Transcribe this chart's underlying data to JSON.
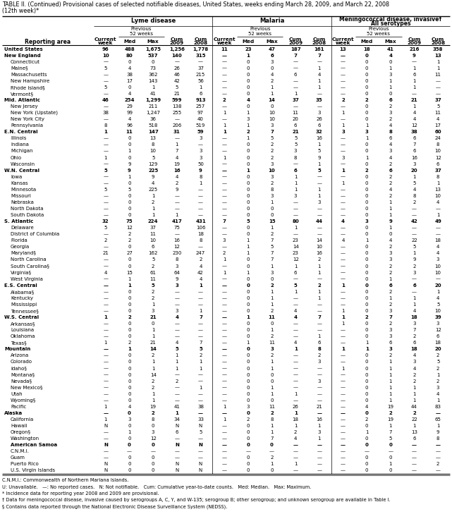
{
  "title_line1": "TABLE II. (Continued) Provisional cases of selected notifiable diseases, United States, weeks ending March 28, 2009, and March 22, 2008",
  "title_line2": "(12th week)*",
  "footnotes": [
    "C.N.M.I.: Commonwealth of Northern Mariana Islands.",
    "U: Unavailable.   —: No reported cases.   N: Not notifiable.   Cum: Cumulative year-to-date counts.   Med: Median.   Max: Maximum.",
    "* Incidence data for reporting year 2008 and 2009 are provisional.",
    "† Data for meningococcal disease, invasive caused by serogroups A, C, Y, and W-135; serogroup B; other serogroup; and unknown serogroup are available in Table I.",
    "§ Contains data reported through the National Electronic Disease Surveillance System (NEDSS)."
  ],
  "rows": [
    [
      "United States",
      "96",
      "488",
      "1,675",
      "1,256",
      "1,778",
      "11",
      "23",
      "47",
      "187",
      "161",
      "13",
      "18",
      "41",
      "216",
      "358"
    ],
    [
      "New England",
      "10",
      "80",
      "537",
      "140",
      "315",
      "—",
      "1",
      "6",
      "7",
      "7",
      "—",
      "0",
      "4",
      "9",
      "13"
    ],
    [
      "Connecticut",
      "—",
      "0",
      "0",
      "—",
      "—",
      "—",
      "0",
      "3",
      "—",
      "—",
      "—",
      "0",
      "0",
      "—",
      "1"
    ],
    [
      "Maine§",
      "5",
      "4",
      "73",
      "26",
      "37",
      "—",
      "0",
      "0",
      "—",
      "1",
      "—",
      "0",
      "1",
      "1",
      "1"
    ],
    [
      "Massachusetts",
      "—",
      "38",
      "362",
      "46",
      "215",
      "—",
      "0",
      "4",
      "6",
      "4",
      "—",
      "0",
      "3",
      "6",
      "11"
    ],
    [
      "New Hampshire",
      "—",
      "17",
      "143",
      "42",
      "56",
      "—",
      "0",
      "2",
      "—",
      "1",
      "—",
      "0",
      "1",
      "1",
      "—"
    ],
    [
      "Rhode Island§",
      "5",
      "0",
      "1",
      "5",
      "1",
      "—",
      "0",
      "1",
      "—",
      "1",
      "—",
      "0",
      "1",
      "1",
      "—"
    ],
    [
      "Vermont§",
      "—",
      "4",
      "41",
      "21",
      "6",
      "—",
      "0",
      "1",
      "1",
      "—",
      "—",
      "0",
      "0",
      "—",
      "—"
    ],
    [
      "Mid. Atlantic",
      "46",
      "254",
      "1,299",
      "599",
      "913",
      "2",
      "4",
      "14",
      "37",
      "35",
      "2",
      "2",
      "6",
      "21",
      "37"
    ],
    [
      "New Jersey",
      "—",
      "29",
      "211",
      "138",
      "257",
      "—",
      "0",
      "0",
      "—",
      "—",
      "—",
      "0",
      "2",
      "1",
      "5"
    ],
    [
      "New York (Upstate)",
      "38",
      "99",
      "1,247",
      "255",
      "97",
      "1",
      "1",
      "10",
      "11",
      "3",
      "1",
      "0",
      "3",
      "4",
      "11"
    ],
    [
      "New York City",
      "—",
      "4",
      "36",
      "—",
      "40",
      "—",
      "3",
      "10",
      "20",
      "26",
      "—",
      "0",
      "2",
      "4",
      "4"
    ],
    [
      "Pennsylvania",
      "8",
      "96",
      "518",
      "206",
      "519",
      "1",
      "1",
      "3",
      "6",
      "6",
      "1",
      "1",
      "4",
      "12",
      "17"
    ],
    [
      "E.N. Central",
      "1",
      "11",
      "147",
      "31",
      "59",
      "1",
      "2",
      "7",
      "21",
      "32",
      "3",
      "3",
      "8",
      "38",
      "60"
    ],
    [
      "Illinois",
      "—",
      "0",
      "13",
      "—",
      "3",
      "—",
      "1",
      "5",
      "5",
      "16",
      "—",
      "1",
      "6",
      "6",
      "24"
    ],
    [
      "Indiana",
      "—",
      "0",
      "8",
      "1",
      "—",
      "—",
      "0",
      "2",
      "5",
      "1",
      "—",
      "0",
      "4",
      "7",
      "8"
    ],
    [
      "Michigan",
      "—",
      "1",
      "10",
      "7",
      "3",
      "—",
      "0",
      "2",
      "3",
      "5",
      "—",
      "0",
      "3",
      "6",
      "10"
    ],
    [
      "Ohio",
      "1",
      "0",
      "5",
      "4",
      "3",
      "1",
      "0",
      "2",
      "8",
      "9",
      "3",
      "1",
      "4",
      "16",
      "12"
    ],
    [
      "Wisconsin",
      "—",
      "9",
      "129",
      "19",
      "50",
      "—",
      "0",
      "3",
      "—",
      "1",
      "—",
      "0",
      "2",
      "3",
      "6"
    ],
    [
      "W.N. Central",
      "5",
      "9",
      "225",
      "16",
      "9",
      "—",
      "1",
      "10",
      "6",
      "5",
      "1",
      "2",
      "6",
      "20",
      "37"
    ],
    [
      "Iowa",
      "—",
      "1",
      "9",
      "4",
      "8",
      "—",
      "0",
      "3",
      "1",
      "—",
      "—",
      "0",
      "2",
      "1",
      "8"
    ],
    [
      "Kansas",
      "—",
      "0",
      "4",
      "2",
      "1",
      "—",
      "0",
      "2",
      "1",
      "—",
      "1",
      "0",
      "2",
      "5",
      "1"
    ],
    [
      "Minnesota",
      "5",
      "5",
      "225",
      "9",
      "—",
      "—",
      "0",
      "8",
      "1",
      "1",
      "—",
      "0",
      "4",
      "4",
      "13"
    ],
    [
      "Missouri",
      "—",
      "0",
      "1",
      "—",
      "—",
      "—",
      "0",
      "3",
      "3",
      "1",
      "—",
      "0",
      "2",
      "8",
      "10"
    ],
    [
      "Nebraska",
      "—",
      "0",
      "2",
      "—",
      "—",
      "—",
      "0",
      "1",
      "—",
      "3",
      "—",
      "0",
      "1",
      "2",
      "4"
    ],
    [
      "North Dakota",
      "—",
      "0",
      "1",
      "—",
      "—",
      "—",
      "0",
      "0",
      "—",
      "—",
      "—",
      "0",
      "1",
      "—",
      "—"
    ],
    [
      "South Dakota",
      "—",
      "0",
      "1",
      "1",
      "—",
      "—",
      "0",
      "0",
      "—",
      "—",
      "—",
      "0",
      "1",
      "—",
      "1"
    ],
    [
      "S. Atlantic",
      "32",
      "75",
      "224",
      "417",
      "431",
      "7",
      "5",
      "15",
      "80",
      "44",
      "4",
      "3",
      "9",
      "42",
      "49"
    ],
    [
      "Delaware",
      "5",
      "12",
      "37",
      "75",
      "106",
      "—",
      "0",
      "1",
      "1",
      "—",
      "—",
      "0",
      "1",
      "—",
      "—"
    ],
    [
      "District of Columbia",
      "—",
      "2",
      "11",
      "—",
      "18",
      "—",
      "0",
      "2",
      "—",
      "—",
      "—",
      "0",
      "0",
      "—",
      "—"
    ],
    [
      "Florida",
      "2",
      "2",
      "10",
      "16",
      "8",
      "3",
      "1",
      "7",
      "23",
      "14",
      "4",
      "1",
      "4",
      "22",
      "18"
    ],
    [
      "Georgia",
      "—",
      "0",
      "6",
      "12",
      "—",
      "—",
      "1",
      "5",
      "14",
      "10",
      "—",
      "0",
      "2",
      "5",
      "4"
    ],
    [
      "Maryland§",
      "21",
      "27",
      "162",
      "230",
      "247",
      "2",
      "1",
      "7",
      "23",
      "16",
      "—",
      "0",
      "3",
      "1",
      "4"
    ],
    [
      "North Carolina",
      "—",
      "0",
      "5",
      "8",
      "2",
      "1",
      "0",
      "7",
      "12",
      "2",
      "—",
      "0",
      "3",
      "9",
      "3"
    ],
    [
      "South Carolina§",
      "—",
      "0",
      "2",
      "3",
      "4",
      "—",
      "0",
      "1",
      "1",
      "1",
      "—",
      "0",
      "2",
      "2",
      "10"
    ],
    [
      "Virginia§",
      "4",
      "15",
      "61",
      "64",
      "42",
      "1",
      "1",
      "3",
      "6",
      "1",
      "—",
      "0",
      "2",
      "3",
      "10"
    ],
    [
      "West Virginia",
      "—",
      "1",
      "11",
      "9",
      "4",
      "—",
      "0",
      "0",
      "—",
      "—",
      "—",
      "0",
      "1",
      "—",
      "—"
    ],
    [
      "E.S. Central",
      "—",
      "1",
      "5",
      "3",
      "1",
      "—",
      "0",
      "2",
      "5",
      "2",
      "1",
      "0",
      "6",
      "6",
      "20"
    ],
    [
      "Alabama§",
      "—",
      "0",
      "2",
      "—",
      "—",
      "—",
      "0",
      "1",
      "1",
      "1",
      "—",
      "0",
      "2",
      "—",
      "1"
    ],
    [
      "Kentucky",
      "—",
      "0",
      "2",
      "—",
      "—",
      "—",
      "0",
      "1",
      "—",
      "1",
      "—",
      "0",
      "1",
      "1",
      "4"
    ],
    [
      "Mississippi",
      "—",
      "0",
      "1",
      "—",
      "—",
      "—",
      "0",
      "1",
      "—",
      "—",
      "—",
      "0",
      "2",
      "1",
      "5"
    ],
    [
      "Tennessee§",
      "—",
      "0",
      "3",
      "3",
      "1",
      "—",
      "0",
      "2",
      "4",
      "—",
      "1",
      "0",
      "3",
      "4",
      "10"
    ],
    [
      "W.S. Central",
      "1",
      "2",
      "21",
      "4",
      "7",
      "—",
      "1",
      "11",
      "4",
      "7",
      "1",
      "2",
      "7",
      "18",
      "39"
    ],
    [
      "Arkansas§",
      "—",
      "0",
      "0",
      "—",
      "—",
      "—",
      "0",
      "0",
      "—",
      "—",
      "1",
      "0",
      "2",
      "3",
      "3"
    ],
    [
      "Louisiana",
      "—",
      "0",
      "1",
      "—",
      "—",
      "—",
      "0",
      "1",
      "—",
      "—",
      "—",
      "0",
      "3",
      "7",
      "12"
    ],
    [
      "Oklahoma",
      "—",
      "0",
      "1",
      "—",
      "—",
      "—",
      "0",
      "2",
      "—",
      "1",
      "—",
      "0",
      "3",
      "2",
      "6"
    ],
    [
      "Texas§",
      "1",
      "2",
      "21",
      "4",
      "7",
      "—",
      "1",
      "11",
      "4",
      "6",
      "—",
      "1",
      "6",
      "6",
      "18"
    ],
    [
      "Mountain",
      "—",
      "1",
      "14",
      "5",
      "5",
      "—",
      "0",
      "3",
      "1",
      "8",
      "1",
      "1",
      "3",
      "18",
      "20"
    ],
    [
      "Arizona",
      "—",
      "0",
      "2",
      "1",
      "2",
      "—",
      "0",
      "2",
      "—",
      "2",
      "—",
      "0",
      "2",
      "4",
      "2"
    ],
    [
      "Colorado",
      "—",
      "0",
      "1",
      "1",
      "1",
      "—",
      "0",
      "1",
      "—",
      "3",
      "—",
      "0",
      "1",
      "3",
      "5"
    ],
    [
      "Idaho§",
      "—",
      "0",
      "1",
      "1",
      "1",
      "—",
      "0",
      "1",
      "—",
      "—",
      "1",
      "0",
      "1",
      "4",
      "2"
    ],
    [
      "Montana§",
      "—",
      "0",
      "14",
      "—",
      "—",
      "—",
      "0",
      "0",
      "—",
      "—",
      "—",
      "0",
      "1",
      "2",
      "1"
    ],
    [
      "Nevada§",
      "—",
      "0",
      "2",
      "2",
      "—",
      "—",
      "0",
      "0",
      "—",
      "3",
      "—",
      "0",
      "1",
      "2",
      "2"
    ],
    [
      "New Mexico§",
      "—",
      "0",
      "2",
      "—",
      "1",
      "—",
      "0",
      "1",
      "—",
      "—",
      "—",
      "0",
      "1",
      "1",
      "3"
    ],
    [
      "Utah",
      "—",
      "0",
      "1",
      "—",
      "—",
      "—",
      "0",
      "1",
      "1",
      "—",
      "—",
      "0",
      "1",
      "1",
      "4"
    ],
    [
      "Wyoming§",
      "—",
      "0",
      "1",
      "—",
      "—",
      "—",
      "0",
      "0",
      "—",
      "—",
      "—",
      "0",
      "1",
      "1",
      "1"
    ],
    [
      "Pacific",
      "1",
      "4",
      "19",
      "41",
      "38",
      "1",
      "3",
      "11",
      "26",
      "21",
      "—",
      "4",
      "19",
      "44",
      "83"
    ],
    [
      "Alaska",
      "—",
      "0",
      "2",
      "1",
      "—",
      "—",
      "0",
      "2",
      "1",
      "—",
      "—",
      "0",
      "2",
      "2",
      "—"
    ],
    [
      "California",
      "1",
      "3",
      "8",
      "34",
      "33",
      "1",
      "2",
      "8",
      "18",
      "16",
      "—",
      "2",
      "19",
      "22",
      "65"
    ],
    [
      "Hawaii",
      "N",
      "0",
      "0",
      "N",
      "N",
      "—",
      "0",
      "1",
      "1",
      "1",
      "—",
      "0",
      "1",
      "1",
      "1"
    ],
    [
      "Oregon§",
      "—",
      "1",
      "3",
      "6",
      "5",
      "—",
      "0",
      "1",
      "2",
      "3",
      "—",
      "1",
      "7",
      "13",
      "9"
    ],
    [
      "Washington",
      "—",
      "0",
      "12",
      "—",
      "—",
      "—",
      "0",
      "7",
      "4",
      "1",
      "—",
      "0",
      "5",
      "6",
      "8"
    ],
    [
      "American Samoa",
      "N",
      "0",
      "0",
      "N",
      "N",
      "—",
      "0",
      "0",
      "—",
      "—",
      "—",
      "0",
      "0",
      "—",
      "—"
    ],
    [
      "C.N.M.I.",
      "—",
      "—",
      "—",
      "—",
      "—",
      "—",
      "—",
      "—",
      "—",
      "—",
      "—",
      "—",
      "—",
      "—",
      "—"
    ],
    [
      "Guam",
      "—",
      "0",
      "0",
      "—",
      "—",
      "—",
      "0",
      "2",
      "—",
      "—",
      "—",
      "0",
      "0",
      "—",
      "—"
    ],
    [
      "Puerto Rico",
      "N",
      "0",
      "0",
      "N",
      "N",
      "—",
      "0",
      "1",
      "1",
      "—",
      "—",
      "0",
      "1",
      "—",
      "2"
    ],
    [
      "U.S. Virgin Islands",
      "N",
      "0",
      "0",
      "N",
      "N",
      "—",
      "0",
      "0",
      "—",
      "—",
      "—",
      "0",
      "0",
      "—",
      "—"
    ]
  ],
  "indented_rows": [
    2,
    3,
    4,
    5,
    6,
    7,
    9,
    10,
    11,
    12,
    14,
    15,
    16,
    17,
    18,
    20,
    21,
    22,
    23,
    24,
    25,
    26,
    28,
    29,
    30,
    31,
    32,
    33,
    34,
    35,
    36,
    38,
    39,
    40,
    41,
    43,
    44,
    45,
    46,
    48,
    49,
    50,
    51,
    52,
    53,
    54,
    55,
    56,
    58,
    59,
    60,
    61,
    62,
    63,
    64,
    65,
    66,
    67,
    68
  ],
  "bold_row_indices": [
    0,
    1,
    8,
    13,
    19,
    27,
    37,
    42,
    47,
    57,
    62
  ],
  "background_color": "#ffffff"
}
